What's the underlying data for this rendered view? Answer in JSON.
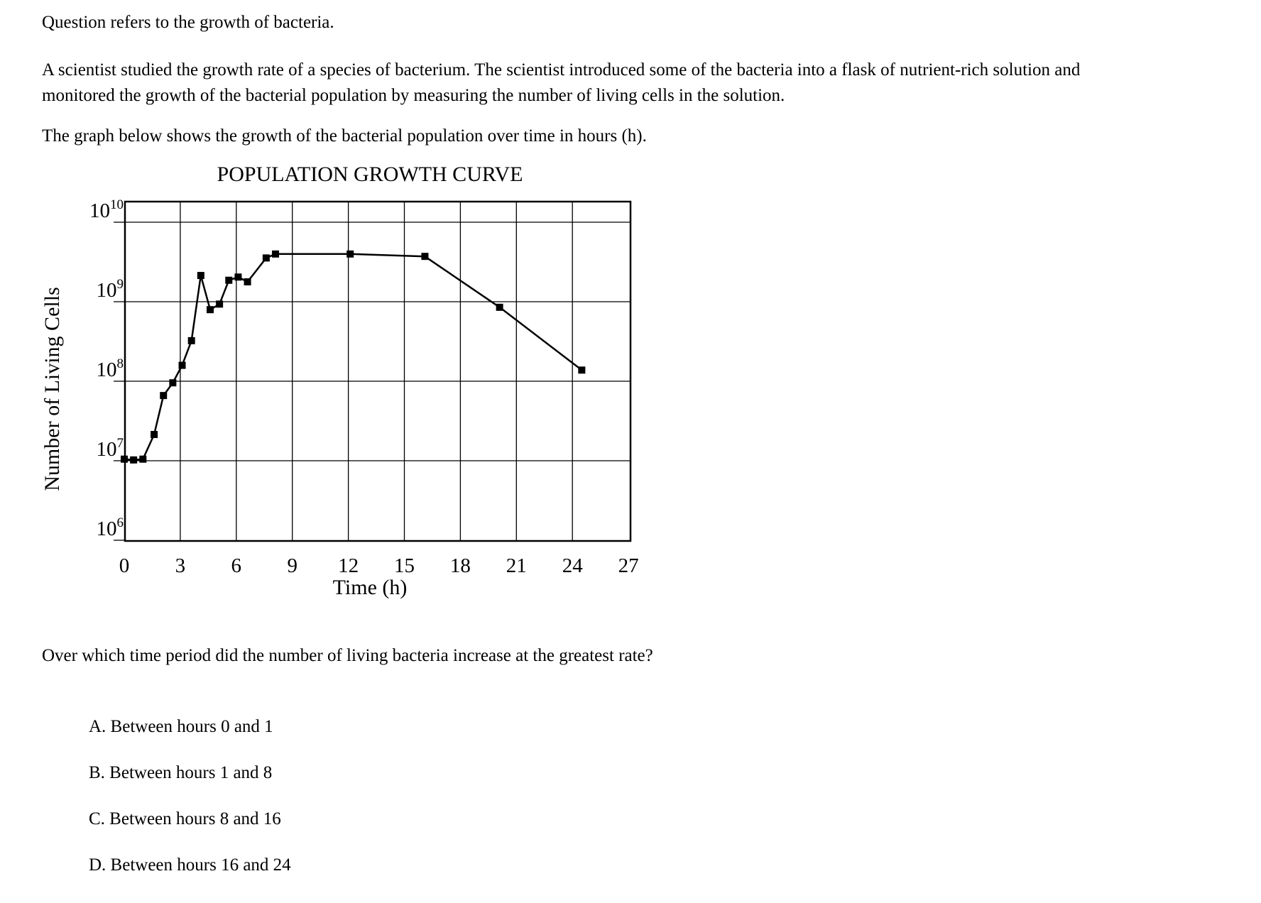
{
  "intro": "Question refers to the growth of bacteria.",
  "paragraph_1": "A scientist studied the growth rate of a species of bacterium. The scientist introduced some of the bacteria into a flask of nutrient-rich solution and",
  "paragraph_2": "monitored the growth of the bacterial population by measuring the number of living cells in the solution.",
  "paragraph_3": "The graph below shows the growth of the bacterial population over time in hours (h).",
  "question": "Over which time period did the number of living bacteria increase at the greatest rate?",
  "choices": [
    "A. Between hours 0 and 1",
    "B. Between hours 1 and 8",
    "C. Between hours 8 and 16",
    "D. Between hours 16 and 24"
  ],
  "chart_data": {
    "type": "line",
    "title": "POPULATION GROWTH CURVE",
    "xlabel": "Time (h)",
    "ylabel": "Number of Living Cells",
    "x_ticks": [
      "0",
      "3",
      "6",
      "9",
      "12",
      "15",
      "18",
      "21",
      "24",
      "27"
    ],
    "y_ticks": [
      {
        "base": "10",
        "exp": "6"
      },
      {
        "base": "10",
        "exp": "7"
      },
      {
        "base": "10",
        "exp": "8"
      },
      {
        "base": "10",
        "exp": "9"
      },
      {
        "base": "10",
        "exp": "10"
      }
    ],
    "xlim": [
      0,
      27
    ],
    "ylim_log10": [
      6,
      10.3
    ],
    "y_scale": "log",
    "grid": true,
    "color": "#000000",
    "series": [
      {
        "x": [
          0,
          0.5,
          1,
          1.6,
          2.1,
          2.6,
          3.1,
          3.6,
          4.1,
          4.6,
          5.1,
          5.6,
          6.1,
          6.6,
          7.6,
          8.1,
          12.1,
          16.1,
          20.1,
          24.5
        ],
        "y_log10": [
          7.02,
          7.01,
          7.02,
          7.33,
          7.82,
          7.98,
          8.2,
          8.51,
          9.33,
          8.9,
          8.97,
          9.27,
          9.31,
          9.25,
          9.55,
          9.6,
          9.6,
          9.57,
          8.93,
          8.14
        ]
      }
    ]
  }
}
